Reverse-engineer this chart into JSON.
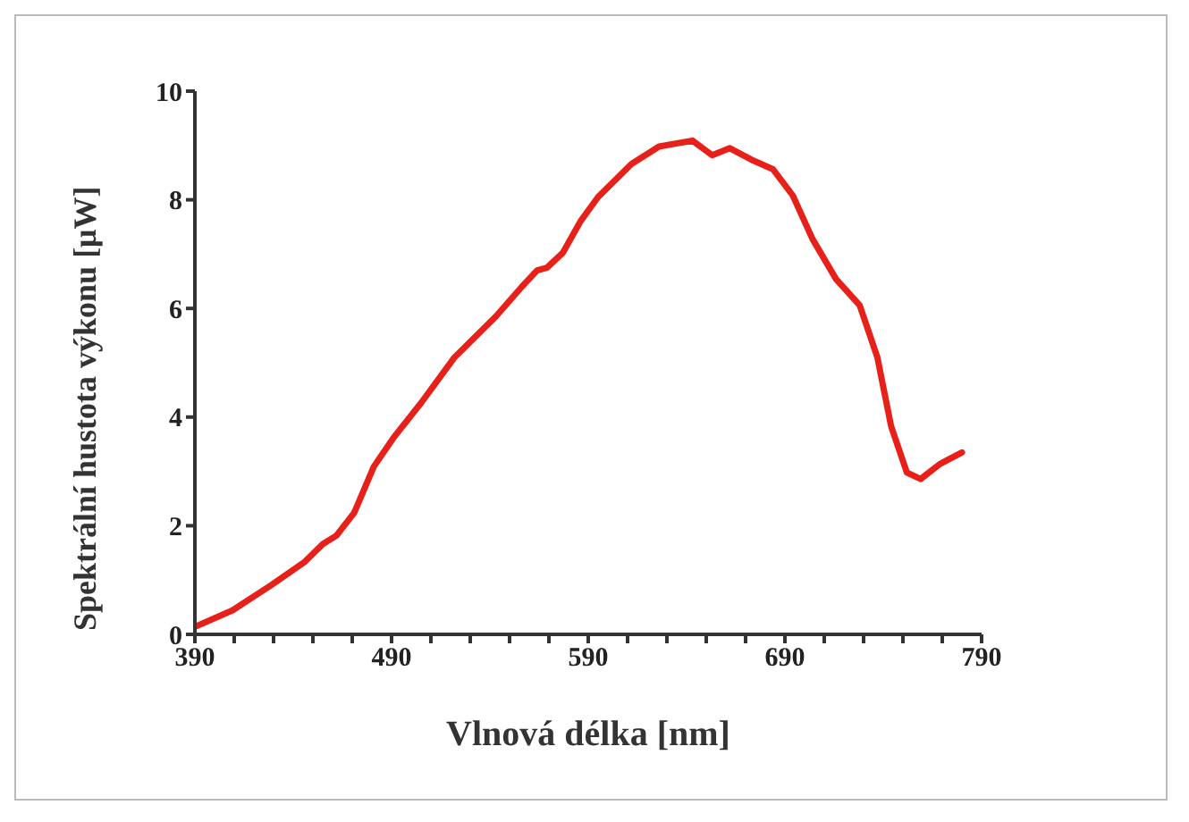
{
  "chart_data": {
    "type": "line",
    "xlabel": "Vlnová délka [nm]",
    "ylabel": "Spektrální hustota výkonu [μW]",
    "x": [
      390,
      409,
      429,
      446,
      455,
      462,
      471,
      481,
      491,
      505,
      522,
      543,
      557,
      564,
      569,
      577,
      586,
      595,
      612,
      626,
      643,
      653,
      662,
      674,
      684,
      694,
      704,
      716,
      728,
      737,
      744,
      752,
      759,
      769,
      780
    ],
    "series": [
      {
        "color": "#e8201a",
        "values": [
          0.14,
          0.44,
          0.91,
          1.34,
          1.66,
          1.82,
          2.24,
          3.09,
          3.62,
          4.26,
          5.1,
          5.85,
          6.43,
          6.7,
          6.75,
          7.02,
          7.6,
          8.05,
          8.66,
          8.98,
          9.09,
          8.82,
          8.95,
          8.72,
          8.56,
          8.08,
          7.28,
          6.54,
          6.06,
          5.1,
          3.83,
          2.98,
          2.86,
          3.14,
          3.35
        ]
      }
    ],
    "xlim": [
      390,
      790
    ],
    "xticks": [
      390,
      {
        "value": 410,
        "label": null
      },
      {
        "value": 430,
        "label": null
      },
      {
        "value": 450,
        "label": null
      },
      {
        "value": 470,
        "label": null
      },
      490,
      {
        "value": 510,
        "label": null
      },
      {
        "value": 530,
        "label": null
      },
      {
        "value": 550,
        "label": null
      },
      {
        "value": 570,
        "label": null
      },
      590,
      {
        "value": 610,
        "label": null
      },
      {
        "value": 630,
        "label": null
      },
      {
        "value": 650,
        "label": null
      },
      {
        "value": 670,
        "label": null
      },
      690,
      {
        "value": 710,
        "label": null
      },
      {
        "value": 730,
        "label": null
      },
      {
        "value": 750,
        "label": null
      },
      {
        "value": 770,
        "label": null
      },
      790
    ],
    "ylim": [
      0,
      10
    ],
    "yticks": [
      0,
      2,
      4,
      6,
      8,
      10
    ],
    "grid": false,
    "legend": false,
    "marker": "none",
    "line_style": "solid"
  }
}
